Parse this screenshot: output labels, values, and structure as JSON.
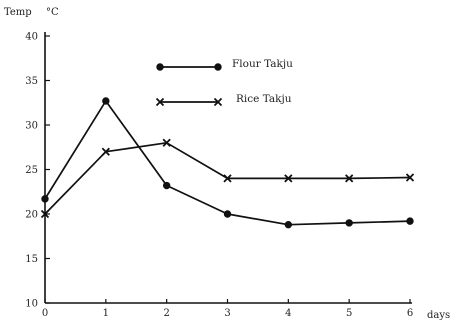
{
  "chart_data": {
    "type": "line",
    "ylabel": "Temp",
    "yunit": "°C",
    "xlabel": "days",
    "x": [
      0,
      1,
      2,
      3,
      4,
      5,
      6
    ],
    "xlim": [
      0,
      6
    ],
    "ylim": [
      10,
      40
    ],
    "yticks": [
      10,
      15,
      20,
      25,
      30,
      35,
      40
    ],
    "grid": false,
    "legend_position": "top-center",
    "series": [
      {
        "name": "Flour Takju",
        "marker": "circle",
        "values": [
          21.7,
          32.7,
          23.2,
          20.0,
          18.8,
          19.0,
          19.2
        ]
      },
      {
        "name": "Rice Takju",
        "marker": "x",
        "values": [
          20.0,
          27.0,
          28.0,
          24.0,
          24.0,
          24.0,
          24.1
        ]
      }
    ]
  }
}
